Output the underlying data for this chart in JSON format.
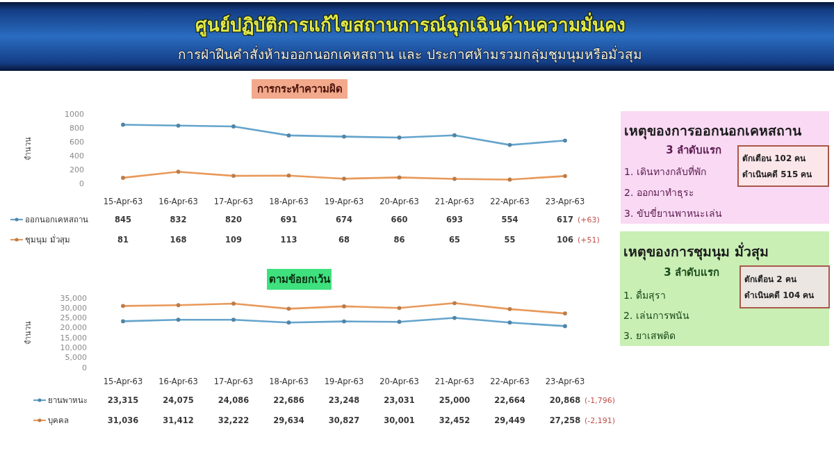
{
  "chart_data": [
    {
      "type": "other",
      "title": "ศูนย์ปฏิบัติการแก้ไขสถานการณ์ฉุกเฉินด้านความมั่นคง",
      "subtitle": "การฝ่าฝืนคำสั่งห้ามออกนอกเคหสถาน และ ประกาศห้ามรวมกลุ่มชุมนุมหรือมั่วสุม"
    },
    {
      "type": "line",
      "title": "การกระทำความผิด",
      "ylabel": "จำนวน",
      "categories": [
        "15-Apr-63",
        "16-Apr-63",
        "17-Apr-63",
        "18-Apr-63",
        "19-Apr-63",
        "20-Apr-63",
        "21-Apr-63",
        "22-Apr-63",
        "23-Apr-63"
      ],
      "series": [
        {
          "name": "ออกนอกเคหสถาน",
          "color": "#64a4cc",
          "values": [
            845,
            832,
            820,
            691,
            674,
            660,
            693,
            554,
            617
          ]
        },
        {
          "name": "ชุมนุม มั่วสุม",
          "color": "#e8995a",
          "values": [
            81,
            168,
            109,
            113,
            68,
            86,
            65,
            55,
            106
          ]
        }
      ],
      "ylim": [
        0,
        1000
      ],
      "yticks": [
        0,
        200,
        400,
        600,
        800,
        1000
      ],
      "marker": "circle",
      "legend": "bottom",
      "data_labels": true,
      "annotations": [
        "(+63)",
        "(+51)"
      ]
    },
    {
      "type": "line",
      "title": "ตามข้อยกเว้น",
      "ylabel": "จำนวน",
      "categories": [
        "15-Apr-63",
        "16-Apr-63",
        "17-Apr-63",
        "18-Apr-63",
        "19-Apr-63",
        "20-Apr-63",
        "21-Apr-63",
        "22-Apr-63",
        "23-Apr-63"
      ],
      "series": [
        {
          "name": "ยานพาหนะ",
          "color": "#64a4cc",
          "values": [
            23315,
            24075,
            24086,
            22686,
            23248,
            23031,
            25000,
            22664,
            20868
          ],
          "value_labels": [
            "23,315",
            "24,075",
            "24,086",
            "22,686",
            "23,248",
            "23,031",
            "25,000",
            "22,664",
            "20,868"
          ]
        },
        {
          "name": "บุคคล",
          "color": "#e8995a",
          "values": [
            31036,
            31412,
            32222,
            29634,
            30827,
            30001,
            32452,
            29449,
            27258
          ],
          "value_labels": [
            "31,036",
            "31,412",
            "32,222",
            "29,634",
            "30,827",
            "30,001",
            "32,452",
            "29,449",
            "27,258"
          ]
        }
      ],
      "ylim": [
        0,
        35000
      ],
      "yticks": [
        0,
        {
          "value": 5000,
          "label": "5,000"
        },
        {
          "value": 10000,
          "label": "10,000"
        },
        {
          "value": 15000,
          "label": "15,000"
        },
        {
          "value": 20000,
          "label": "20,000"
        },
        {
          "value": 25000,
          "label": "25,000"
        },
        {
          "value": 30000,
          "label": "30,000"
        },
        {
          "value": 35000,
          "label": "35,000"
        }
      ],
      "marker": "circle",
      "legend": "bottom",
      "annotations": [
        "(-1,796)",
        "(-2,191)"
      ]
    },
    {
      "type": "other",
      "title": "เหตุของการออกนอกเคหสถาน",
      "subtitle": "3 ลำดับแรก",
      "annotations": [
        "1. เดินทางกลับที่พัก",
        "2. ออกมาทำธุระ",
        "3. ขับขี่ยานพาหนะเล่น",
        "ตักเตือน 102 คน",
        "ดำเนินคดี 515 คน"
      ]
    },
    {
      "type": "other",
      "title": "เหตุของการชุมนุม มั่วสุม",
      "subtitle": "3 ลำดับแรก",
      "annotations": [
        "1. ดื่มสุรา",
        "2. เล่นการพนัน",
        "3. ยาเสพติด",
        "ตักเตือน 2 คน",
        "ดำเนินคดี 104 คน"
      ]
    }
  ]
}
